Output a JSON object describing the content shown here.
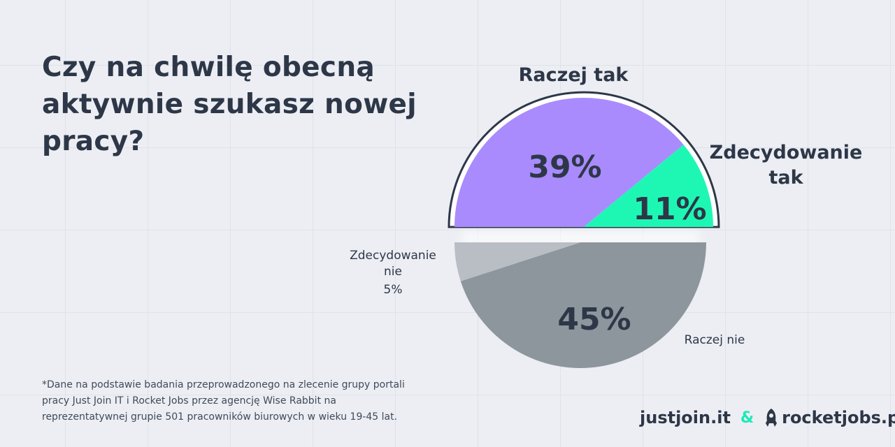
{
  "title": "Czy na chwilę obecną aktywnie szukasz nowej pracy?",
  "chart_data": {
    "type": "pie",
    "title": "Czy na chwilę obecną aktywnie szukasz nowej pracy?",
    "slices": [
      {
        "label_lines": [
          "Raczej tak"
        ],
        "value": 39,
        "value_label": "39%",
        "color": "#a98bfd",
        "half": "top"
      },
      {
        "label_lines": [
          "Zdecydowanie",
          "tak"
        ],
        "value": 11,
        "value_label": "11%",
        "color": "#1ef7b4",
        "half": "top"
      },
      {
        "label_lines": [
          "Raczej nie"
        ],
        "value": 45,
        "value_label": "45%",
        "color": "#8e969d",
        "half": "bottom"
      },
      {
        "label_lines": [
          "Zdecydowanie",
          "nie"
        ],
        "value": 5,
        "value_label": "5%",
        "color": "#b9bec5",
        "half": "bottom"
      }
    ]
  },
  "footnote": "*Dane na podstawie badania przeprowadzonego na zlecenie grupy portali pracy Just Join IT i Rocket Jobs przez agencję Wise Rabbit na reprezentatywnej grupie 501 pracowników biurowych w wieku 19-45 lat.",
  "logos": {
    "justjoin": "justjoin.it",
    "ampersand": "&",
    "rocketjobs": "rocketjobs.pl"
  },
  "colors": {
    "text": "#2d3748",
    "outline": "#2d3748",
    "accent": "#1de9b6"
  }
}
